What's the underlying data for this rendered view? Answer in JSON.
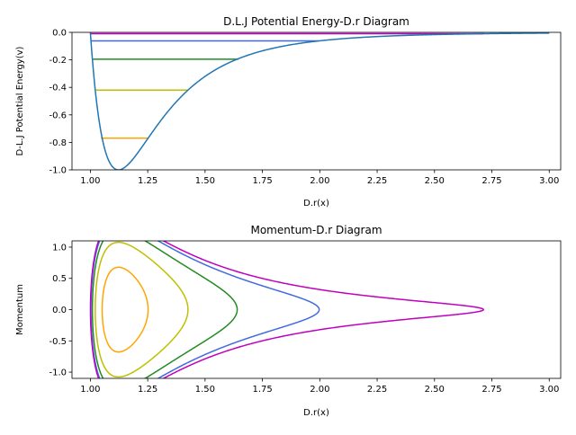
{
  "chart_data": [
    {
      "type": "line",
      "title": "D.L.J Potential Energy-D.r Diagram",
      "xlabel": "D.r(x)",
      "ylabel": "D-L.J Potential Energy(v)",
      "xlim": [
        0.92,
        3.05
      ],
      "ylim": [
        -1.0,
        0.0
      ],
      "xticks": [
        "1.00",
        "1.25",
        "1.50",
        "1.75",
        "2.00",
        "2.25",
        "2.50",
        "2.75",
        "3.00"
      ],
      "yticks": [
        "-1.0",
        "-0.8",
        "-0.6",
        "-0.4",
        "-0.2",
        "0.0"
      ],
      "grid": false,
      "legend": "none",
      "curve": {
        "function": "4*(x^-12 - x^-6)",
        "x_range": [
          1.0,
          3.0
        ],
        "color": "#1f77b4"
      },
      "energy_levels": [
        {
          "energy": -0.77,
          "x_range": [
            1.046,
            1.252
          ],
          "color": "#ffa500"
        },
        {
          "energy": -0.42,
          "x_range": [
            1.025,
            1.425
          ],
          "color": "#bfbf00"
        },
        {
          "energy": -0.195,
          "x_range": [
            1.012,
            1.645
          ],
          "color": "#228b22"
        },
        {
          "energy": -0.062,
          "x_range": [
            1.004,
            1.995
          ],
          "color": "#4169e1"
        },
        {
          "energy": -0.01,
          "x_range": [
            1.001,
            2.715
          ],
          "color": "#bf00bf"
        }
      ]
    },
    {
      "type": "line",
      "title": "Momentum-D.r Diagram",
      "xlabel": "D.r(x)",
      "ylabel": "Momentum",
      "xlim": [
        0.92,
        3.05
      ],
      "ylim": [
        -1.1,
        1.1
      ],
      "xticks": [
        "1.00",
        "1.25",
        "1.50",
        "1.75",
        "2.00",
        "2.25",
        "2.50",
        "2.75",
        "3.00"
      ],
      "yticks": [
        "-1.0",
        "-0.5",
        "0.0",
        "0.5",
        "1.0"
      ],
      "grid": false,
      "legend": "none",
      "relation": "p = ±sqrt(2*(E - V(x)))",
      "orbits": [
        {
          "energy": -0.77,
          "color": "#ffa500"
        },
        {
          "energy": -0.42,
          "color": "#bfbf00"
        },
        {
          "energy": -0.195,
          "color": "#228b22"
        },
        {
          "energy": -0.062,
          "color": "#4169e1"
        },
        {
          "energy": -0.01,
          "color": "#bf00bf"
        }
      ]
    }
  ]
}
